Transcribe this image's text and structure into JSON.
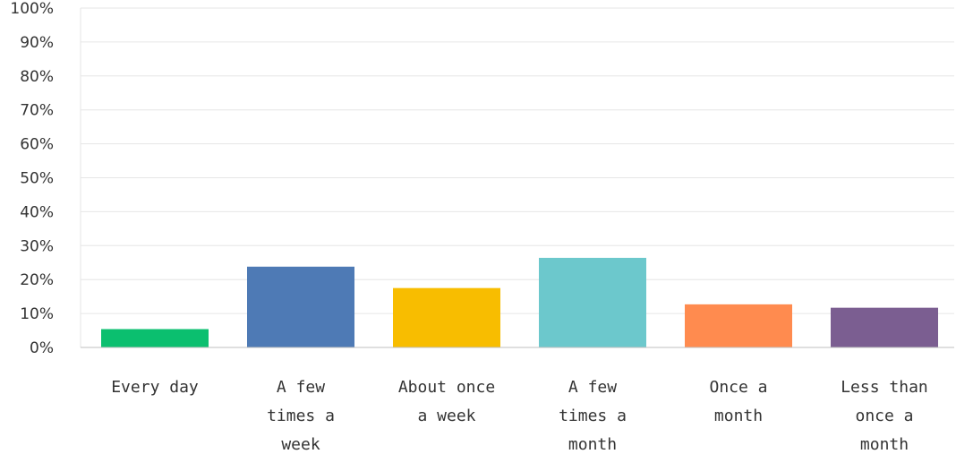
{
  "chart_data": {
    "type": "bar",
    "categories": [
      "Every day",
      "A few times a week",
      "About once a week",
      "A few times a month",
      "Once a month",
      "Less than once a month"
    ],
    "category_label_lines": [
      [
        "Every day"
      ],
      [
        "A few",
        "times a",
        "week"
      ],
      [
        "About once",
        "a week"
      ],
      [
        "A few",
        "times a",
        "month"
      ],
      [
        "Once a",
        "month"
      ],
      [
        "Less than",
        "once a",
        "month"
      ]
    ],
    "values": [
      5.4,
      23.8,
      17.5,
      26.4,
      12.7,
      11.7
    ],
    "colors": [
      "#0bbf6f",
      "#4e7ab5",
      "#f8bd00",
      "#6cc8cc",
      "#ff8b4f",
      "#7b5e91"
    ],
    "ylim": [
      0,
      100
    ],
    "yticks": [
      "0%",
      "10%",
      "20%",
      "30%",
      "40%",
      "50%",
      "60%",
      "70%",
      "80%",
      "90%",
      "100%"
    ],
    "grid": true
  }
}
